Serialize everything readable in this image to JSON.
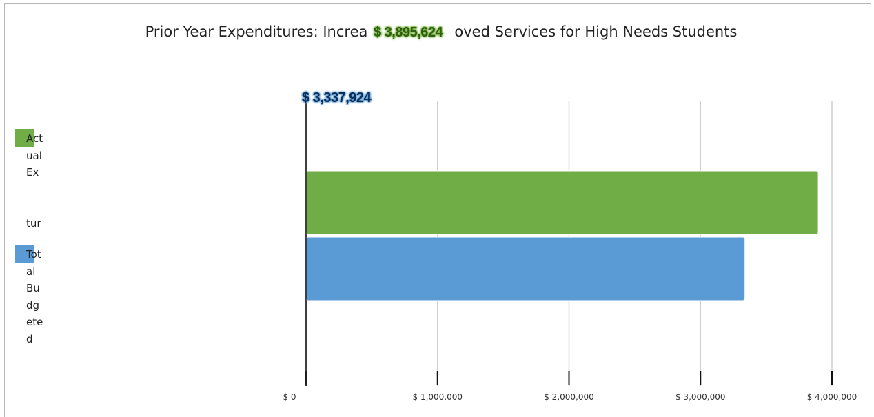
{
  "chart_data": {
    "type": "bar",
    "orientation": "horizontal",
    "title": "Prior Year Expenditures: Increased or Improved Services for High Needs Students",
    "title_visible_left": "Prior Year Expenditures: Increa",
    "title_visible_right": "oved Services for High Needs Students",
    "series": [
      {
        "name": "Actual Expenditures",
        "legend_visible": [
          "Act",
          "ual",
          "Ex",
          "",
          "tur"
        ],
        "value": 3895624,
        "label": "$ 3,895,624",
        "color": "#70ad47"
      },
      {
        "name": "Total Budgeted",
        "legend_visible": [
          "Tot",
          "al",
          "Bu",
          "dg",
          "ete",
          "d"
        ],
        "value": 3337924,
        "label": "$ 3,337,924",
        "color": "#5b9bd5"
      }
    ],
    "xlim": [
      0,
      4000000
    ],
    "xticks": [
      0,
      1000000,
      2000000,
      3000000,
      4000000
    ],
    "xtick_labels": [
      "$ 0",
      "$ 1,000,000",
      "$ 2,000,000",
      "$ 3,000,000",
      "$ 4,000,000"
    ],
    "grid": true,
    "legend_position": "left"
  }
}
